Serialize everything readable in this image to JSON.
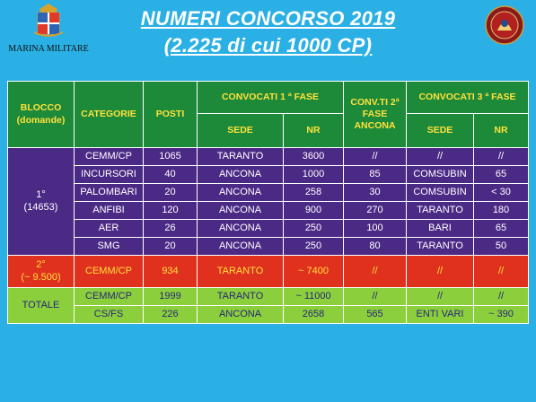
{
  "title_line1": "NUMERI CONCORSO 2019",
  "title_line2": "(2.225 di cui 1000 CP)",
  "logo_left_label": "MARINA MILITARE",
  "headers": {
    "blocco": "BLOCCO (domande)",
    "categorie": "CATEGORIE",
    "posti": "POSTI",
    "convocati1": "CONVOCATI 1 ª FASE",
    "conv2": "CONV.TI 2ª FASE ANCONA",
    "convocati3": "CONVOCATI 3 ª FASE",
    "sede": "SEDE",
    "nr": "NR",
    "sede3": "SEDE",
    "nr3": "NR"
  },
  "group1": {
    "label_line1": "1°",
    "label_line2": "(14653)",
    "rows": [
      {
        "cat": "CEMM/CP",
        "posti": "1065",
        "sede": "TARANTO",
        "nr": "3600",
        "conv2": "//",
        "sede3": "//",
        "nr3": "//"
      },
      {
        "cat": "INCURSORI",
        "posti": "40",
        "sede": "ANCONA",
        "nr": "1000",
        "conv2": "85",
        "sede3": "COMSUBIN",
        "nr3": "65"
      },
      {
        "cat": "PALOMBARI",
        "posti": "20",
        "sede": "ANCONA",
        "nr": "258",
        "conv2": "30",
        "sede3": "COMSUBIN",
        "nr3": "< 30"
      },
      {
        "cat": "ANFIBI",
        "posti": "120",
        "sede": "ANCONA",
        "nr": "900",
        "conv2": "270",
        "sede3": "TARANTO",
        "nr3": "180"
      },
      {
        "cat": "AER",
        "posti": "26",
        "sede": "ANCONA",
        "nr": "250",
        "conv2": "100",
        "sede3": "BARI",
        "nr3": "65"
      },
      {
        "cat": "SMG",
        "posti": "20",
        "sede": "ANCONA",
        "nr": "250",
        "conv2": "80",
        "sede3": "TARANTO",
        "nr3": "50"
      }
    ]
  },
  "group2": {
    "label_line1": "2°",
    "label_line2": "(~ 9.500)",
    "row": {
      "cat": "CEMM/CP",
      "posti": "934",
      "sede": "TARANTO",
      "nr": "~ 7400",
      "conv2": "//",
      "sede3": "//",
      "nr3": "//"
    }
  },
  "group3": {
    "label": "TOTALE",
    "rows": [
      {
        "cat": "CEMM/CP",
        "posti": "1999",
        "sede": "TARANTO",
        "nr": "~ 11000",
        "conv2": "//",
        "sede3": "//",
        "nr3": "//"
      },
      {
        "cat": "CS/FS",
        "posti": "226",
        "sede": "ANCONA",
        "nr": "2658",
        "conv2": "565",
        "sede3": "ENTI VARI",
        "nr3": "~ 390"
      }
    ]
  },
  "colors": {
    "background": "#2ab0e4",
    "header": "#1d8a3a",
    "group1": "#4b2a86",
    "group2": "#e0311f",
    "group3": "#8ccf3c"
  },
  "icons": {
    "left": "navy-crest-icon",
    "right": "round-badge-icon"
  }
}
